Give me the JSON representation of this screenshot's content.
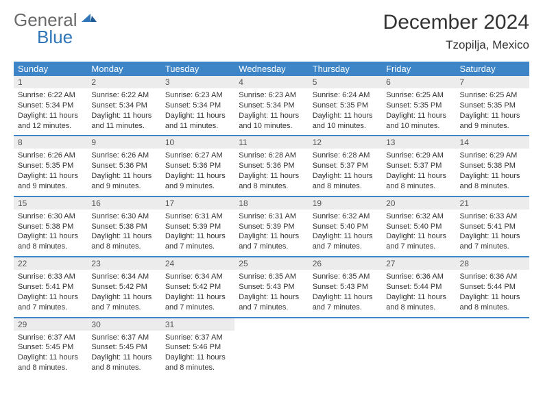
{
  "brand": {
    "part1": "General",
    "part2": "Blue"
  },
  "title": "December 2024",
  "location": "Tzopilja, Mexico",
  "colors": {
    "header_bg": "#3d85c6",
    "header_text": "#ffffff",
    "daynum_bg": "#ececec",
    "rule": "#3d85c6",
    "logo_gray": "#6a6a6a",
    "logo_blue": "#2f76b8"
  },
  "dayNames": [
    "Sunday",
    "Monday",
    "Tuesday",
    "Wednesday",
    "Thursday",
    "Friday",
    "Saturday"
  ],
  "weeks": [
    [
      {
        "n": "1",
        "sunrise": "6:22 AM",
        "sunset": "5:34 PM",
        "daylight": "11 hours and 12 minutes."
      },
      {
        "n": "2",
        "sunrise": "6:22 AM",
        "sunset": "5:34 PM",
        "daylight": "11 hours and 11 minutes."
      },
      {
        "n": "3",
        "sunrise": "6:23 AM",
        "sunset": "5:34 PM",
        "daylight": "11 hours and 11 minutes."
      },
      {
        "n": "4",
        "sunrise": "6:23 AM",
        "sunset": "5:34 PM",
        "daylight": "11 hours and 10 minutes."
      },
      {
        "n": "5",
        "sunrise": "6:24 AM",
        "sunset": "5:35 PM",
        "daylight": "11 hours and 10 minutes."
      },
      {
        "n": "6",
        "sunrise": "6:25 AM",
        "sunset": "5:35 PM",
        "daylight": "11 hours and 10 minutes."
      },
      {
        "n": "7",
        "sunrise": "6:25 AM",
        "sunset": "5:35 PM",
        "daylight": "11 hours and 9 minutes."
      }
    ],
    [
      {
        "n": "8",
        "sunrise": "6:26 AM",
        "sunset": "5:35 PM",
        "daylight": "11 hours and 9 minutes."
      },
      {
        "n": "9",
        "sunrise": "6:26 AM",
        "sunset": "5:36 PM",
        "daylight": "11 hours and 9 minutes."
      },
      {
        "n": "10",
        "sunrise": "6:27 AM",
        "sunset": "5:36 PM",
        "daylight": "11 hours and 9 minutes."
      },
      {
        "n": "11",
        "sunrise": "6:28 AM",
        "sunset": "5:36 PM",
        "daylight": "11 hours and 8 minutes."
      },
      {
        "n": "12",
        "sunrise": "6:28 AM",
        "sunset": "5:37 PM",
        "daylight": "11 hours and 8 minutes."
      },
      {
        "n": "13",
        "sunrise": "6:29 AM",
        "sunset": "5:37 PM",
        "daylight": "11 hours and 8 minutes."
      },
      {
        "n": "14",
        "sunrise": "6:29 AM",
        "sunset": "5:38 PM",
        "daylight": "11 hours and 8 minutes."
      }
    ],
    [
      {
        "n": "15",
        "sunrise": "6:30 AM",
        "sunset": "5:38 PM",
        "daylight": "11 hours and 8 minutes."
      },
      {
        "n": "16",
        "sunrise": "6:30 AM",
        "sunset": "5:38 PM",
        "daylight": "11 hours and 8 minutes."
      },
      {
        "n": "17",
        "sunrise": "6:31 AM",
        "sunset": "5:39 PM",
        "daylight": "11 hours and 7 minutes."
      },
      {
        "n": "18",
        "sunrise": "6:31 AM",
        "sunset": "5:39 PM",
        "daylight": "11 hours and 7 minutes."
      },
      {
        "n": "19",
        "sunrise": "6:32 AM",
        "sunset": "5:40 PM",
        "daylight": "11 hours and 7 minutes."
      },
      {
        "n": "20",
        "sunrise": "6:32 AM",
        "sunset": "5:40 PM",
        "daylight": "11 hours and 7 minutes."
      },
      {
        "n": "21",
        "sunrise": "6:33 AM",
        "sunset": "5:41 PM",
        "daylight": "11 hours and 7 minutes."
      }
    ],
    [
      {
        "n": "22",
        "sunrise": "6:33 AM",
        "sunset": "5:41 PM",
        "daylight": "11 hours and 7 minutes."
      },
      {
        "n": "23",
        "sunrise": "6:34 AM",
        "sunset": "5:42 PM",
        "daylight": "11 hours and 7 minutes."
      },
      {
        "n": "24",
        "sunrise": "6:34 AM",
        "sunset": "5:42 PM",
        "daylight": "11 hours and 7 minutes."
      },
      {
        "n": "25",
        "sunrise": "6:35 AM",
        "sunset": "5:43 PM",
        "daylight": "11 hours and 7 minutes."
      },
      {
        "n": "26",
        "sunrise": "6:35 AM",
        "sunset": "5:43 PM",
        "daylight": "11 hours and 7 minutes."
      },
      {
        "n": "27",
        "sunrise": "6:36 AM",
        "sunset": "5:44 PM",
        "daylight": "11 hours and 8 minutes."
      },
      {
        "n": "28",
        "sunrise": "6:36 AM",
        "sunset": "5:44 PM",
        "daylight": "11 hours and 8 minutes."
      }
    ],
    [
      {
        "n": "29",
        "sunrise": "6:37 AM",
        "sunset": "5:45 PM",
        "daylight": "11 hours and 8 minutes."
      },
      {
        "n": "30",
        "sunrise": "6:37 AM",
        "sunset": "5:45 PM",
        "daylight": "11 hours and 8 minutes."
      },
      {
        "n": "31",
        "sunrise": "6:37 AM",
        "sunset": "5:46 PM",
        "daylight": "11 hours and 8 minutes."
      },
      null,
      null,
      null,
      null
    ]
  ],
  "labels": {
    "sunrise": "Sunrise:",
    "sunset": "Sunset:",
    "daylight": "Daylight:"
  }
}
